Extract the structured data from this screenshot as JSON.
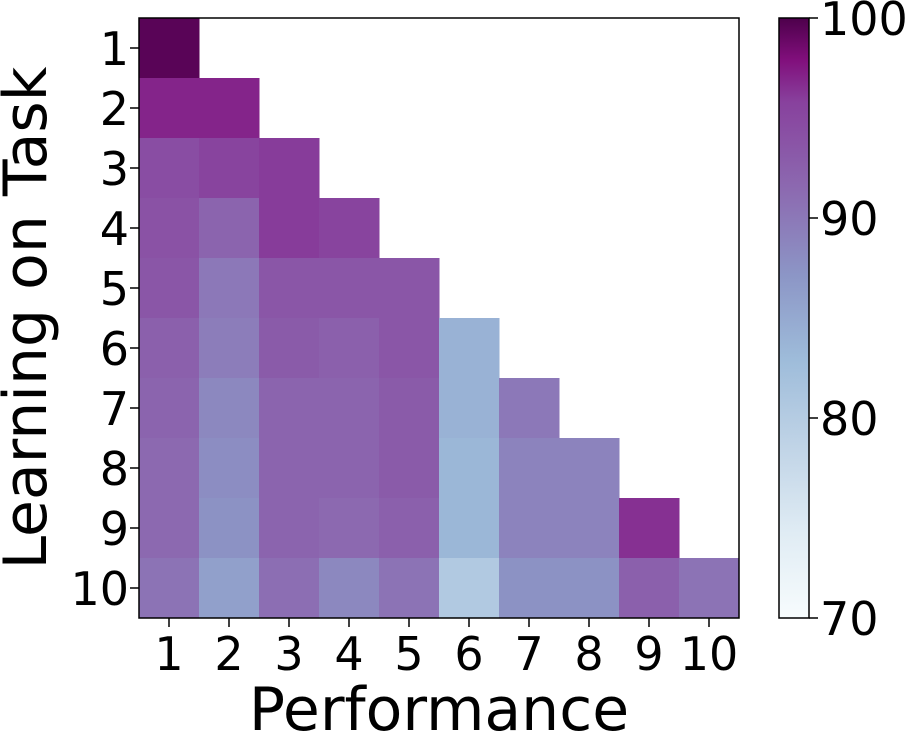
{
  "chart_data": {
    "type": "heatmap",
    "title": "",
    "xlabel": "Performance",
    "ylabel": "Learning on Task",
    "x_ticks": [
      "1",
      "2",
      "3",
      "4",
      "5",
      "6",
      "7",
      "8",
      "9",
      "10"
    ],
    "y_ticks": [
      "1",
      "2",
      "3",
      "4",
      "5",
      "6",
      "7",
      "8",
      "9",
      "10"
    ],
    "colorbar": {
      "min": 70,
      "max": 100,
      "ticks": [
        "70",
        "80",
        "90",
        "100"
      ],
      "colormap": "BuPu"
    },
    "values": [
      [
        99.5
      ],
      [
        97.0,
        97.0
      ],
      [
        94.5,
        95.5,
        96.0
      ],
      [
        94.0,
        92.0,
        96.0,
        95.5
      ],
      [
        93.5,
        90.0,
        93.5,
        93.5,
        93.5
      ],
      [
        92.5,
        89.5,
        93.0,
        92.5,
        93.5,
        84.0
      ],
      [
        92.0,
        88.5,
        92.0,
        92.0,
        93.0,
        84.0,
        90.0
      ],
      [
        91.5,
        88.0,
        92.0,
        92.0,
        93.0,
        83.5,
        89.0,
        89.0
      ],
      [
        91.5,
        87.5,
        92.0,
        91.5,
        92.5,
        83.5,
        89.0,
        89.0,
        96.5
      ],
      [
        90.5,
        86.0,
        91.0,
        88.5,
        90.5,
        80.5,
        87.5,
        87.5,
        92.5,
        90.5
      ]
    ]
  }
}
